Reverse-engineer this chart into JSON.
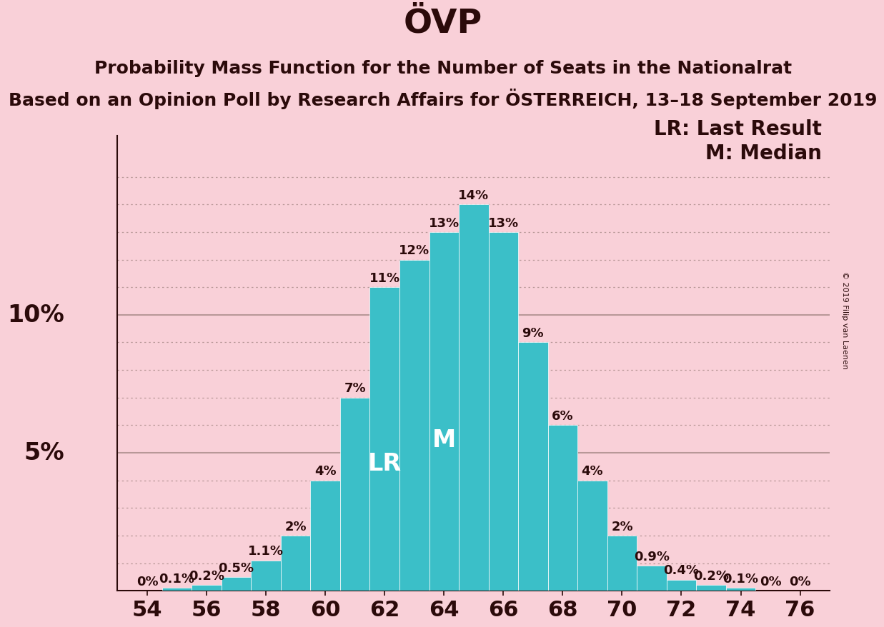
{
  "title": "ÖVP",
  "subtitle1": "Probability Mass Function for the Number of Seats in the Nationalrat",
  "subtitle2": "Based on an Opinion Poll by Research Affairs for ÖSTERREICH, 13–18 September 2019",
  "copyright": "© 2019 Filip van Laenen",
  "seats": [
    54,
    55,
    56,
    57,
    58,
    59,
    60,
    61,
    62,
    63,
    64,
    65,
    66,
    67,
    68,
    69,
    70,
    71,
    72,
    73,
    74,
    75,
    76
  ],
  "probabilities": [
    0.0,
    0.1,
    0.2,
    0.5,
    1.1,
    2.0,
    4.0,
    7.0,
    11.0,
    12.0,
    13.0,
    14.0,
    13.0,
    9.0,
    6.0,
    4.0,
    2.0,
    0.9,
    0.4,
    0.2,
    0.1,
    0.0,
    0.0
  ],
  "bar_color": "#3bbfc8",
  "bar_edgecolor": "#ffffff",
  "background_color": "#f9d0d8",
  "text_color": "#2b0a0a",
  "label_color": "#ffffff",
  "grid_color": "#b89898",
  "lr_seat": 62,
  "median_seat": 64,
  "lr_label": "LR",
  "median_label": "M",
  "legend_lr": "LR: Last Result",
  "legend_m": "M: Median",
  "ylabel_5": "5%",
  "ylabel_10": "10%",
  "ylim": [
    0,
    16.5
  ],
  "xtick_step": 2,
  "xtick_start": 54,
  "xtick_end": 76,
  "title_fontsize": 34,
  "subtitle_fontsize": 18,
  "axis_fontsize": 22,
  "bar_label_fontsize": 13,
  "ylabel_fontsize": 24,
  "legend_fontsize": 20,
  "label_in_bar_fontsize": 24
}
